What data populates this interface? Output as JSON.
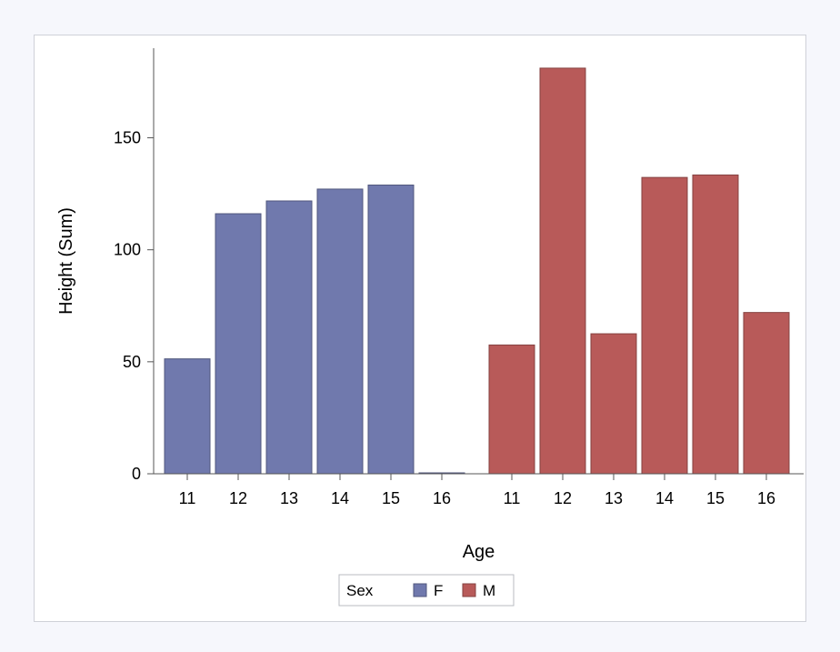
{
  "chart_data": {
    "type": "bar",
    "xlabel": "Age",
    "ylabel": "Height (Sum)",
    "ylim": [
      0,
      190
    ],
    "yticks": [
      0,
      50,
      100,
      150
    ],
    "groups": [
      {
        "name": "F",
        "color": "#7079ad",
        "categories": [
          "11",
          "12",
          "13",
          "14",
          "15",
          "16"
        ],
        "values": [
          51.3,
          116.1,
          121.8,
          127.1,
          128.9,
          0
        ]
      },
      {
        "name": "M",
        "color": "#b85a59",
        "categories": [
          "11",
          "12",
          "13",
          "14",
          "15",
          "16"
        ],
        "values": [
          57.5,
          181.1,
          62.5,
          132.3,
          133.4,
          72
        ]
      }
    ],
    "legend": {
      "title": "Sex",
      "position": "bottom",
      "entries": [
        "F",
        "M"
      ]
    },
    "grid": false
  }
}
